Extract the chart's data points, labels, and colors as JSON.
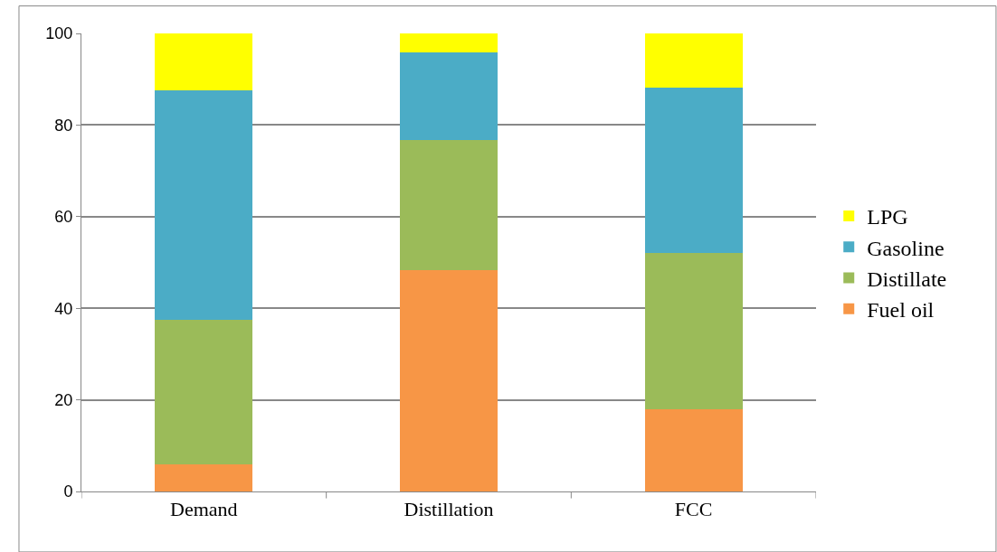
{
  "chart_data": {
    "type": "bar",
    "stacked": true,
    "categories": [
      "Demand",
      "Distillation",
      "FCC"
    ],
    "series": [
      {
        "name": "Fuel oil",
        "color": "#f79646",
        "values": [
          6,
          48.3,
          18
        ]
      },
      {
        "name": "Distillate",
        "color": "#9bbb59",
        "values": [
          31.5,
          28.4,
          34
        ]
      },
      {
        "name": "Gasoline",
        "color": "#4bacc6",
        "values": [
          50,
          19.2,
          36.2
        ]
      },
      {
        "name": "LPG",
        "color": "#ffff00",
        "values": [
          12.5,
          4.1,
          11.8
        ]
      }
    ],
    "ylim": [
      0,
      100
    ],
    "yticks": [
      0,
      20,
      40,
      60,
      80,
      100
    ],
    "grid": "y",
    "legend": "right"
  }
}
